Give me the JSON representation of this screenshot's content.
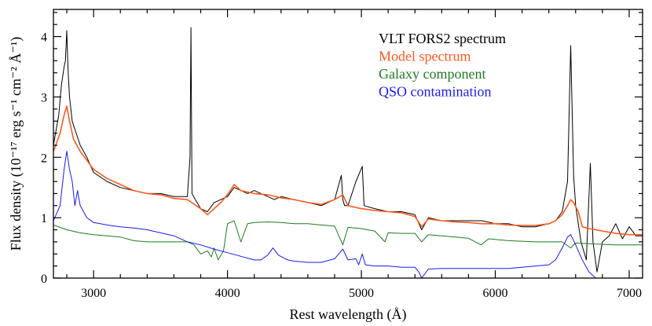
{
  "chart_data": {
    "type": "line",
    "title": "",
    "xlabel": "Rest wavelength (Å)",
    "ylabel": "Flux density (10⁻¹⁷ erg s⁻¹ cm⁻² Å⁻¹)",
    "xlim": [
      2700,
      7100
    ],
    "ylim": [
      0,
      4.45
    ],
    "x_ticks": [
      3000,
      4000,
      5000,
      6000,
      7000
    ],
    "y_ticks": [
      0,
      1,
      2,
      3,
      4
    ],
    "grid": false,
    "legend_placement": "top-right",
    "series": [
      {
        "name": "VLT FORS2 spectrum",
        "color": "#000000",
        "x": [
          2700,
          2740,
          2760,
          2780,
          2790,
          2800,
          2810,
          2820,
          2840,
          2870,
          2900,
          2950,
          3000,
          3100,
          3200,
          3300,
          3400,
          3500,
          3600,
          3700,
          3720,
          3727,
          3735,
          3760,
          3800,
          3850,
          3900,
          3950,
          4000,
          4050,
          4100,
          4150,
          4200,
          4250,
          4300,
          4350,
          4400,
          4500,
          4600,
          4700,
          4800,
          4850,
          4861,
          4875,
          4900,
          4959,
          5007,
          5020,
          5100,
          5200,
          5300,
          5400,
          5450,
          5500,
          5600,
          5700,
          5800,
          5900,
          6000,
          6100,
          6200,
          6300,
          6400,
          6450,
          6500,
          6540,
          6563,
          6585,
          6600,
          6640,
          6680,
          6710,
          6730,
          6760,
          6800,
          6850,
          6900,
          6950,
          7000,
          7050,
          7100
        ],
        "y": [
          2.2,
          2.7,
          3.2,
          3.5,
          3.6,
          4.1,
          3.4,
          3.0,
          2.6,
          2.4,
          2.2,
          2.0,
          1.75,
          1.6,
          1.5,
          1.45,
          1.4,
          1.4,
          1.35,
          1.35,
          2.0,
          4.15,
          1.4,
          1.3,
          1.15,
          1.1,
          1.25,
          1.3,
          1.35,
          1.5,
          1.45,
          1.4,
          1.45,
          1.4,
          1.35,
          1.3,
          1.35,
          1.3,
          1.25,
          1.2,
          1.3,
          1.7,
          1.3,
          1.2,
          1.2,
          1.6,
          1.85,
          1.2,
          1.15,
          1.1,
          1.1,
          1.05,
          0.8,
          1.0,
          0.95,
          0.95,
          0.95,
          0.95,
          0.9,
          0.9,
          0.85,
          0.85,
          0.9,
          0.95,
          1.1,
          1.6,
          3.85,
          1.7,
          1.2,
          0.6,
          0.3,
          1.9,
          0.6,
          0.1,
          0.6,
          0.7,
          0.9,
          0.65,
          0.85,
          0.7,
          0.7
        ]
      },
      {
        "name": "Model spectrum",
        "color": "#ff5a1f",
        "x": [
          2700,
          2750,
          2780,
          2800,
          2820,
          2850,
          2900,
          2950,
          3000,
          3100,
          3200,
          3300,
          3400,
          3500,
          3600,
          3700,
          3800,
          3850,
          3900,
          3950,
          4000,
          4050,
          4100,
          4200,
          4300,
          4400,
          4500,
          4600,
          4700,
          4800,
          4861,
          4900,
          5000,
          5100,
          5200,
          5300,
          5400,
          5450,
          5500,
          5600,
          5700,
          5800,
          5900,
          6000,
          6100,
          6200,
          6300,
          6400,
          6450,
          6500,
          6540,
          6563,
          6585,
          6620,
          6650,
          6700,
          6750,
          6800,
          6900,
          7000,
          7100
        ],
        "y": [
          2.1,
          2.4,
          2.7,
          2.85,
          2.6,
          2.3,
          2.1,
          1.95,
          1.8,
          1.65,
          1.55,
          1.45,
          1.4,
          1.38,
          1.32,
          1.3,
          1.15,
          1.05,
          1.15,
          1.25,
          1.38,
          1.55,
          1.45,
          1.4,
          1.38,
          1.33,
          1.3,
          1.25,
          1.22,
          1.3,
          1.38,
          1.2,
          1.15,
          1.12,
          1.1,
          1.08,
          1.02,
          0.85,
          0.98,
          0.95,
          0.93,
          0.92,
          0.9,
          0.9,
          0.88,
          0.87,
          0.87,
          0.9,
          0.95,
          1.05,
          1.2,
          1.3,
          1.25,
          1.1,
          0.85,
          0.82,
          0.8,
          0.78,
          0.74,
          0.72,
          0.72
        ]
      },
      {
        "name": "Galaxy component",
        "color": "#1f7a1f",
        "x": [
          2700,
          2800,
          2900,
          3000,
          3100,
          3200,
          3300,
          3400,
          3500,
          3600,
          3700,
          3750,
          3800,
          3850,
          3880,
          3900,
          3930,
          3970,
          4000,
          4050,
          4100,
          4150,
          4200,
          4300,
          4400,
          4500,
          4600,
          4700,
          4800,
          4861,
          4900,
          5000,
          5100,
          5175,
          5200,
          5300,
          5400,
          5450,
          5500,
          5600,
          5700,
          5800,
          5893,
          5950,
          6000,
          6100,
          6200,
          6300,
          6400,
          6500,
          6563,
          6600,
          6700,
          6800,
          6900,
          7000,
          7100
        ],
        "y": [
          0.88,
          0.8,
          0.75,
          0.72,
          0.7,
          0.68,
          0.62,
          0.6,
          0.6,
          0.6,
          0.6,
          0.55,
          0.4,
          0.45,
          0.35,
          0.5,
          0.3,
          0.45,
          0.9,
          0.95,
          0.6,
          0.9,
          0.92,
          0.93,
          0.92,
          0.9,
          0.9,
          0.88,
          0.86,
          0.55,
          0.84,
          0.82,
          0.78,
          0.6,
          0.75,
          0.74,
          0.74,
          0.6,
          0.72,
          0.7,
          0.68,
          0.66,
          0.55,
          0.65,
          0.64,
          0.62,
          0.61,
          0.6,
          0.6,
          0.6,
          0.5,
          0.58,
          0.57,
          0.56,
          0.55,
          0.55,
          0.55
        ]
      },
      {
        "name": "QSO contamination",
        "color": "#1a1aee",
        "x": [
          2700,
          2750,
          2780,
          2800,
          2820,
          2840,
          2860,
          2880,
          2900,
          2950,
          3000,
          3050,
          3100,
          3200,
          3300,
          3400,
          3500,
          3600,
          3700,
          3800,
          3900,
          4000,
          4100,
          4200,
          4250,
          4300,
          4340,
          4380,
          4450,
          4500,
          4600,
          4700,
          4800,
          4861,
          4900,
          4959,
          4980,
          5007,
          5030,
          5100,
          5200,
          5300,
          5400,
          5430,
          5450,
          5500,
          5600,
          5700,
          5800,
          5900,
          6000,
          6100,
          6200,
          6300,
          6400,
          6450,
          6500,
          6540,
          6563,
          6600,
          6650,
          6700,
          6750,
          6800,
          6900,
          7000,
          7100
        ],
        "y": [
          0.95,
          1.2,
          1.8,
          2.1,
          1.8,
          1.6,
          1.2,
          1.45,
          1.2,
          1.0,
          0.92,
          0.9,
          0.88,
          0.85,
          0.83,
          0.8,
          0.75,
          0.7,
          0.6,
          0.55,
          0.48,
          0.42,
          0.36,
          0.3,
          0.3,
          0.38,
          0.5,
          0.38,
          0.3,
          0.28,
          0.26,
          0.26,
          0.32,
          0.48,
          0.3,
          0.32,
          0.22,
          0.4,
          0.22,
          0.2,
          0.2,
          0.18,
          0.18,
          0.1,
          0.0,
          0.15,
          0.16,
          0.16,
          0.16,
          0.16,
          0.16,
          0.16,
          0.18,
          0.2,
          0.22,
          0.3,
          0.5,
          0.68,
          0.72,
          0.55,
          0.3,
          0.1,
          0.0,
          0.0,
          0.0,
          0.0,
          0.0
        ]
      }
    ]
  }
}
